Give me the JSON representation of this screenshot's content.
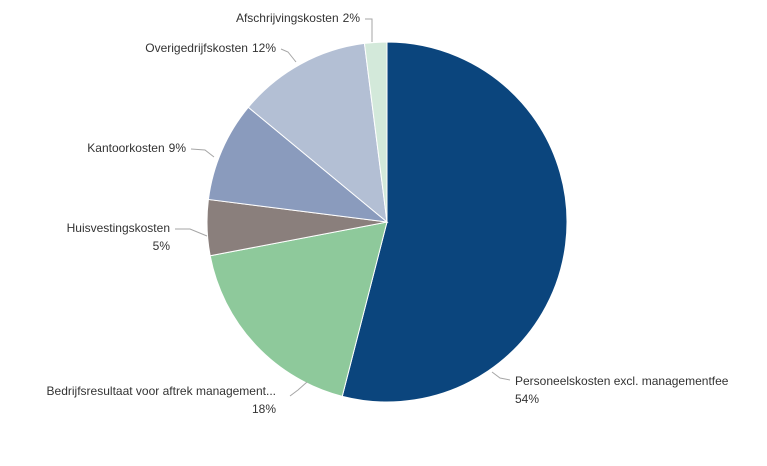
{
  "chart_data": {
    "type": "pie",
    "categories": [
      "Personeelskosten excl. managementfee",
      "Bedrijfsresultaat voor aftrek management...",
      "Huisvestingskosten",
      "Kantoorkosten",
      "Overigedrijfskosten",
      "Afschrijvingskosten"
    ],
    "values": [
      54,
      18,
      5,
      9,
      12,
      2
    ],
    "value_labels": [
      "54%",
      "18%",
      "5%",
      "9%",
      "12%",
      "2%"
    ],
    "colors": [
      "#0b457d",
      "#8ec99b",
      "#8a7f7c",
      "#8a9bbd",
      "#b3bfd4",
      "#d3e9da"
    ]
  }
}
